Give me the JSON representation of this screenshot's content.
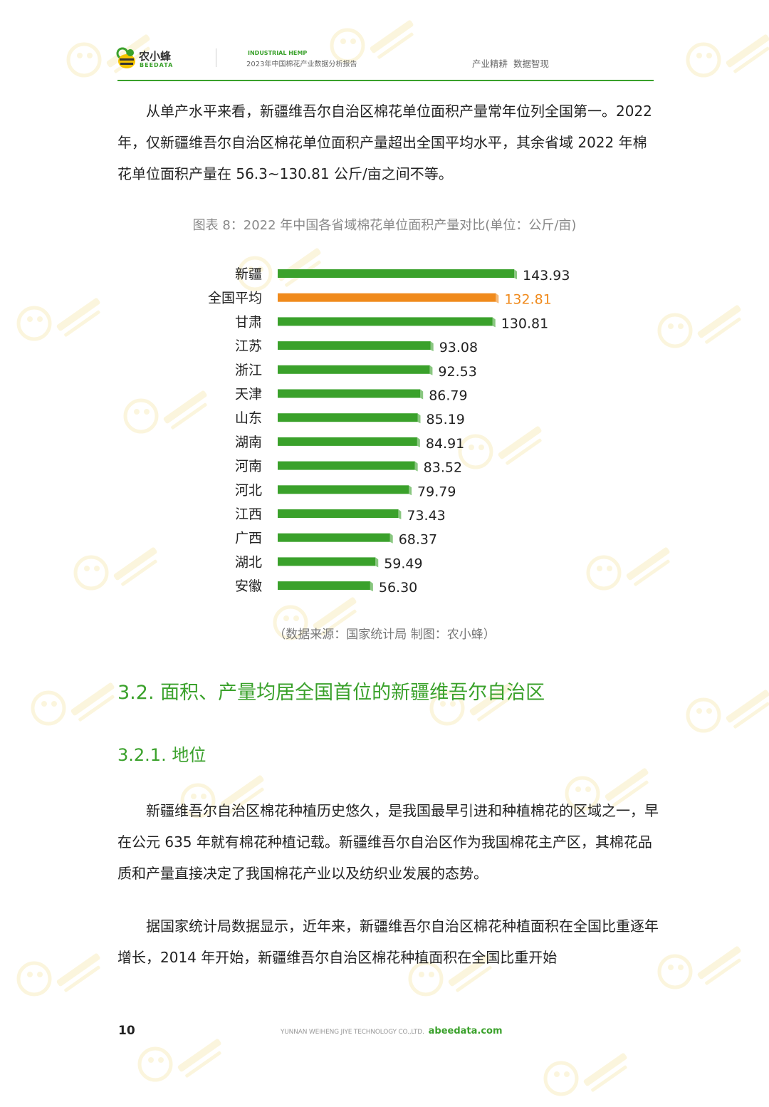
{
  "header": {
    "logo_cn": "农小蜂",
    "logo_en": "BEEDATA",
    "report_en": "INDUSTRIAL HEMP",
    "report_cn": "2023年中国棉花产业数据分析报告",
    "slogan": "产业精耕 数据智现"
  },
  "intro": [
    "从单产水平来看，新疆维吾尔自治区棉花单位面积产量常年位列全国第一。2022 年，仅新疆维吾尔自治区棉花单位面积产量超出全国平均水平，其余省域 2022 年棉花单位面积产量在 56.3~130.81 公斤/亩之间不等。"
  ],
  "figure": {
    "caption": "图表 8：2022 年中国各省域棉花单位面积产量对比(单位：公斤/亩)",
    "source": "（数据来源：国家统计局 制图：农小蜂）"
  },
  "chart_data": {
    "type": "bar",
    "orientation": "horizontal",
    "title": "图表 8：2022 年中国各省域棉花单位面积产量对比(单位：公斤/亩)",
    "categories": [
      "新疆",
      "全国平均",
      "甘肃",
      "江苏",
      "浙江",
      "天津",
      "山东",
      "湖南",
      "河南",
      "河北",
      "江西",
      "广西",
      "湖北",
      "安徽"
    ],
    "value_labels": [
      "143.93",
      "132.81",
      "130.81",
      "93.08",
      "92.53",
      "86.79",
      "85.19",
      "84.91",
      "83.52",
      "79.79",
      "73.43",
      "68.37",
      "59.49",
      "56.30"
    ],
    "series": [
      {
        "values": [
          143.93,
          132.81,
          130.81,
          93.08,
          92.53,
          86.79,
          85.19,
          84.91,
          83.52,
          79.79,
          73.43,
          68.37,
          59.49,
          56.3
        ]
      }
    ],
    "highlight_category": "全国平均",
    "colors": {
      "bar": "#3aa12b",
      "highlight": "#f08a1c"
    },
    "grid": false,
    "legend": "none"
  },
  "section": {
    "h2": "3.2. 面积、产量均居全国首位的新疆维吾尔自治区",
    "h3": "3.2.1. 地位"
  },
  "body": [
    "新疆维吾尔自治区棉花种植历史悠久，是我国最早引进和种植棉花的区域之一，早在公元 635 年就有棉花种植记载。新疆维吾尔自治区作为我国棉花主产区，其棉花品质和产量直接决定了我国棉花产业以及纺织业发展的态势。",
    "据国家统计局数据显示，近年来，新疆维吾尔自治区棉花种植面积在全国比重逐年增长，2014 年开始，新疆维吾尔自治区棉花种植面积在全国比重开始"
  ],
  "footer": {
    "page": "10",
    "company": "YUNNAN WEIHENG JIYE TECHNOLOGY CO.,LTD.",
    "site": "abeedata.com"
  }
}
